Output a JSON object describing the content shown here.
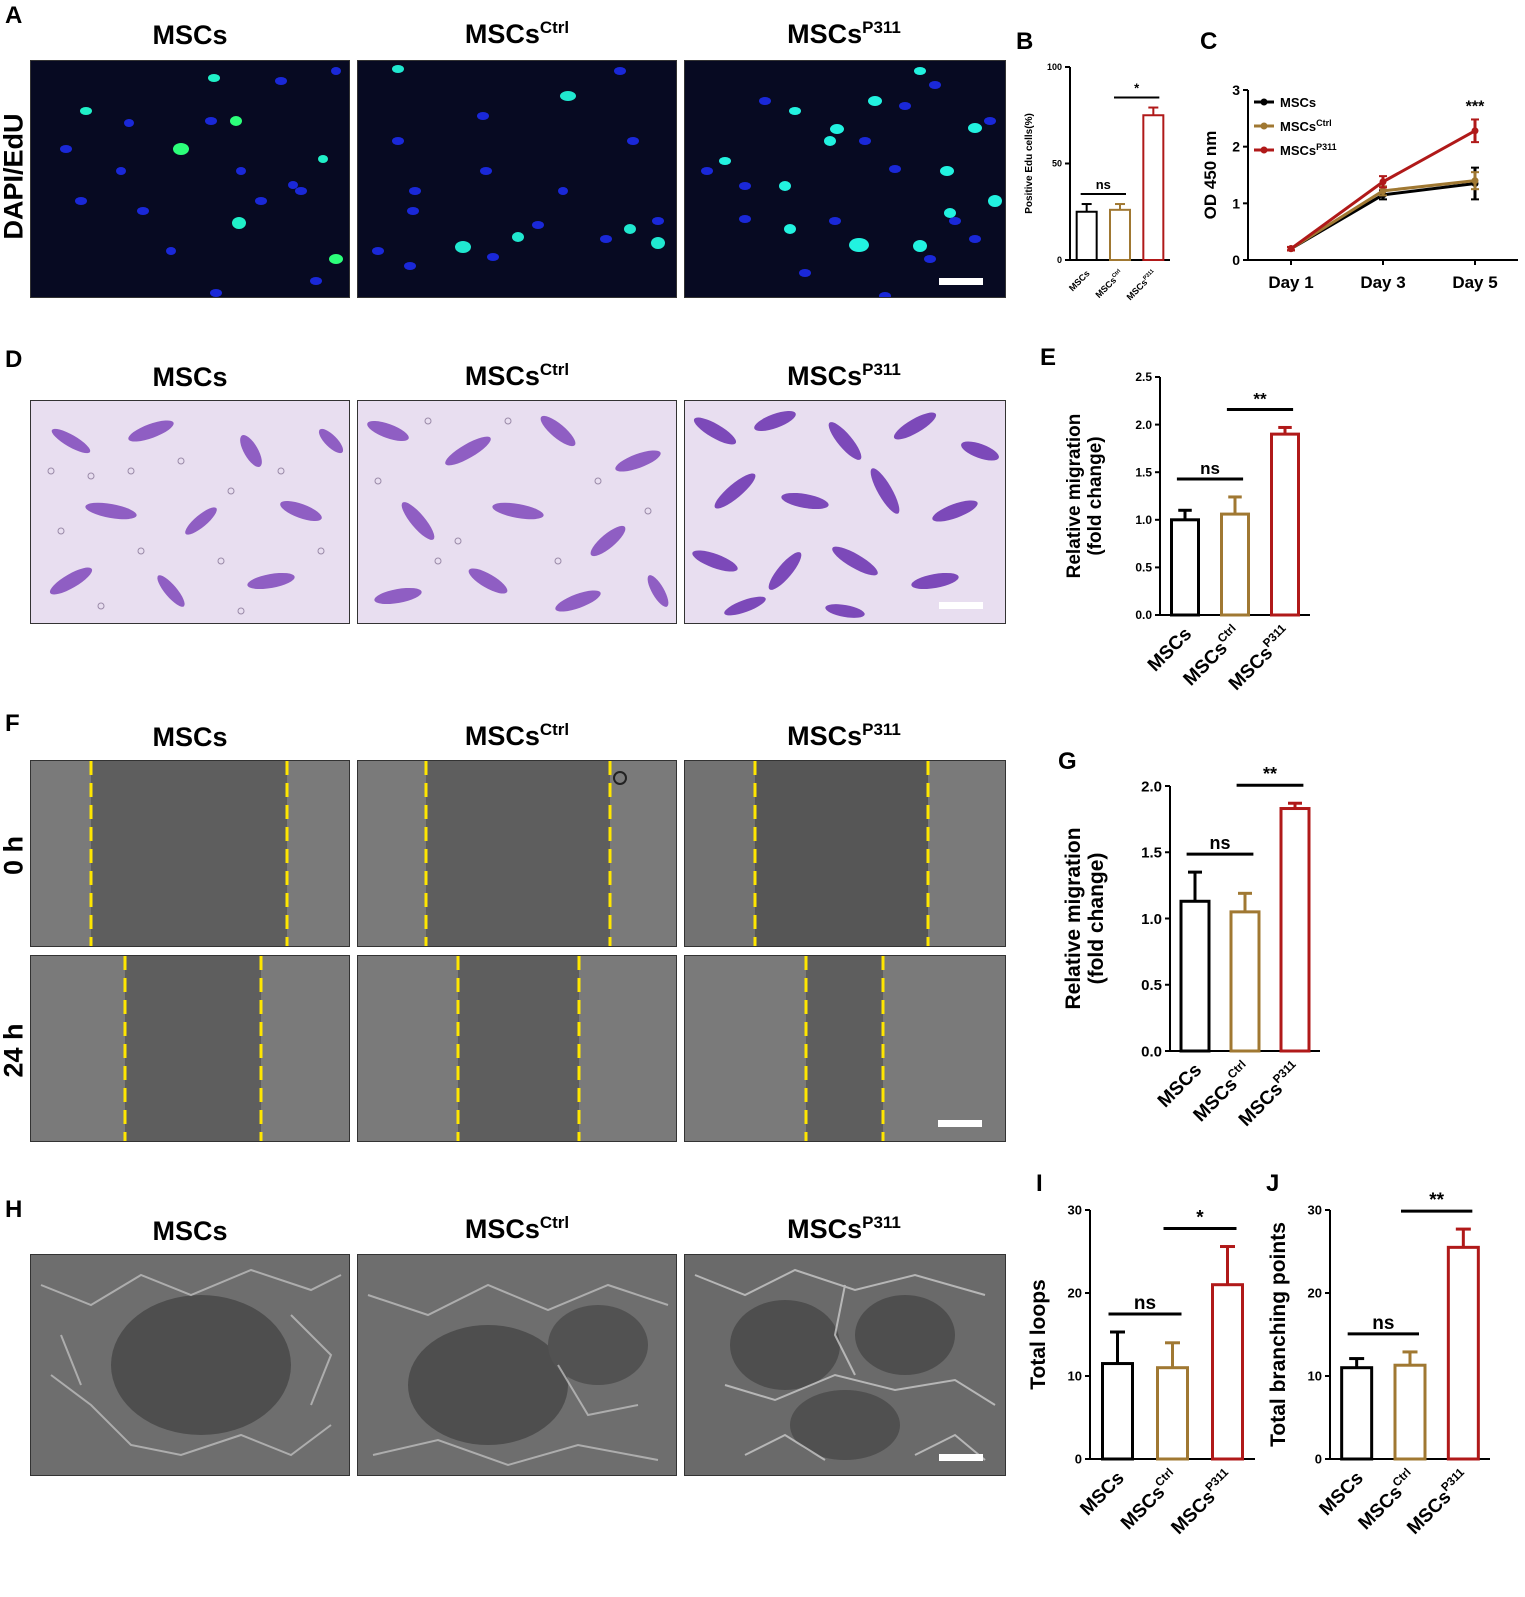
{
  "panels": {
    "A": "A",
    "B": "B",
    "C": "C",
    "D": "D",
    "E": "E",
    "F": "F",
    "G": "G",
    "H": "H",
    "I": "I",
    "J": "J"
  },
  "groups": {
    "g1": "MSCs",
    "g2": "MSCs",
    "g2_sup": "Ctrl",
    "g3": "MSCs",
    "g3_sup": "P311"
  },
  "row_labels": {
    "edu": "DAPI/EdU",
    "t0": "0 h",
    "t24": "24 h"
  },
  "colors": {
    "MSCs": "#000000",
    "MSCsCtrl": "#a07832",
    "MSCsP311": "#b01919"
  },
  "chart_data": [
    {
      "id": "B",
      "type": "bar",
      "categories": [
        "MSCs",
        "MSCsCtrl",
        "MSCsP311"
      ],
      "values": [
        25,
        26,
        75
      ],
      "errors": [
        4,
        3,
        4
      ],
      "ylabel": "Positive Edu cells(%)",
      "ylim": [
        0,
        100
      ],
      "yticks": [
        0,
        50,
        100
      ],
      "annotations": [
        {
          "pair": [
            0,
            1
          ],
          "label": "ns"
        },
        {
          "pair": [
            1,
            2
          ],
          "label": "*"
        }
      ]
    },
    {
      "id": "C",
      "type": "line",
      "x": [
        "Day 1",
        "Day 3",
        "Day 5"
      ],
      "series": [
        {
          "name": "MSCs",
          "values": [
            0.2,
            1.15,
            1.35
          ],
          "errors": [
            0.03,
            0.08,
            0.28
          ]
        },
        {
          "name": "MSCsCtrl",
          "values": [
            0.2,
            1.22,
            1.4
          ],
          "errors": [
            0.03,
            0.08,
            0.15
          ]
        },
        {
          "name": "MSCsP311",
          "values": [
            0.2,
            1.38,
            2.28
          ],
          "errors": [
            0.03,
            0.1,
            0.2
          ]
        }
      ],
      "ylabel": "OD 450 nm",
      "ylim": [
        0,
        3
      ],
      "yticks": [
        0,
        1,
        2,
        3
      ],
      "annotations": [
        {
          "x": "Day 5",
          "label": "***"
        }
      ]
    },
    {
      "id": "E",
      "type": "bar",
      "categories": [
        "MSCs",
        "MSCsCtrl",
        "MSCsP311"
      ],
      "values": [
        1.0,
        1.06,
        1.9
      ],
      "errors": [
        0.1,
        0.18,
        0.07
      ],
      "ylabel": "Relative migration (fold change)",
      "ylim": [
        0,
        2.5
      ],
      "yticks": [
        "0.0",
        "0.5",
        "1.0",
        "1.5",
        "2.0",
        "2.5"
      ],
      "annotations": [
        {
          "pair": [
            0,
            1
          ],
          "label": "ns"
        },
        {
          "pair": [
            1,
            2
          ],
          "label": "**"
        }
      ]
    },
    {
      "id": "G",
      "type": "bar",
      "categories": [
        "MSCs",
        "MSCsCtrl",
        "MSCsP311"
      ],
      "values": [
        1.13,
        1.05,
        1.83
      ],
      "errors": [
        0.22,
        0.14,
        0.04
      ],
      "ylabel": "Relative migration (fold change)",
      "ylim": [
        0,
        2.0
      ],
      "yticks": [
        "0.0",
        "0.5",
        "1.0",
        "1.5",
        "2.0"
      ],
      "annotations": [
        {
          "pair": [
            0,
            1
          ],
          "label": "ns"
        },
        {
          "pair": [
            1,
            2
          ],
          "label": "**"
        }
      ]
    },
    {
      "id": "I",
      "type": "bar",
      "categories": [
        "MSCs",
        "MSCsCtrl",
        "MSCsP311"
      ],
      "values": [
        11.5,
        11.0,
        21.0
      ],
      "errors": [
        3.8,
        3.0,
        4.6
      ],
      "ylabel": "Total loops",
      "ylim": [
        0,
        30
      ],
      "yticks": [
        "0",
        "10",
        "20",
        "30"
      ],
      "annotations": [
        {
          "pair": [
            0,
            1
          ],
          "label": "ns"
        },
        {
          "pair": [
            1,
            2
          ],
          "label": "*"
        }
      ]
    },
    {
      "id": "J",
      "type": "bar",
      "categories": [
        "MSCs",
        "MSCsCtrl",
        "MSCsP311"
      ],
      "values": [
        11.0,
        11.3,
        25.5
      ],
      "errors": [
        1.1,
        1.6,
        2.2
      ],
      "ylabel": "Total branching points",
      "ylim": [
        0,
        30
      ],
      "yticks": [
        "0",
        "10",
        "20",
        "30"
      ],
      "annotations": [
        {
          "pair": [
            0,
            1
          ],
          "label": "ns"
        },
        {
          "pair": [
            1,
            2
          ],
          "label": "**"
        }
      ]
    }
  ]
}
